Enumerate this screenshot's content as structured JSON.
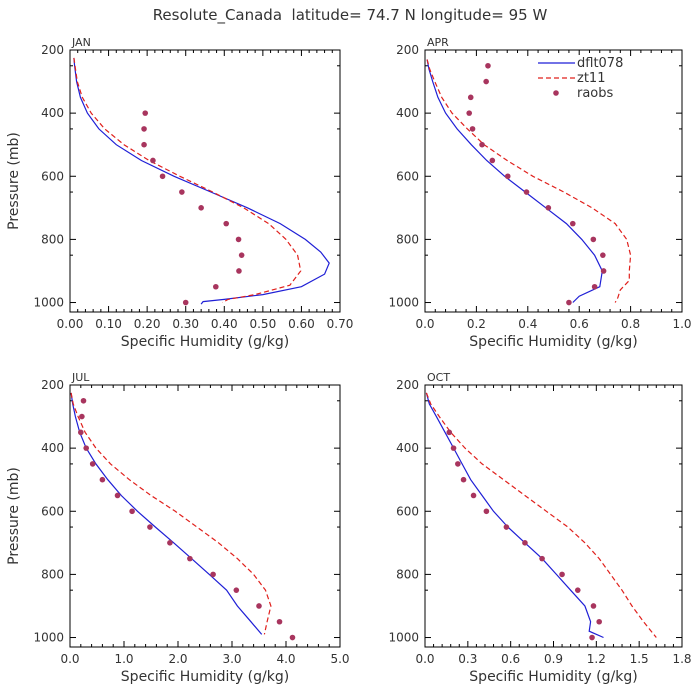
{
  "figure_title": "Resolute_Canada  latitude= 74.7 N longitude= 95 W",
  "colors": {
    "dflt078": "#1f1fd6",
    "zt11": "#e0201c",
    "raobs": "#a8355e",
    "axis": "#000000",
    "text": "#333333"
  },
  "legend": [
    "dflt078",
    "zt11",
    "raobs"
  ],
  "chart_data": [
    {
      "type": "line",
      "panel": "JAN",
      "xlabel": "Specific Humidity (g/kg)",
      "ylabel": "Pressure (mb)",
      "xlim": [
        0.0,
        0.7
      ],
      "xticks": [
        "0.00",
        "0.10",
        "0.20",
        "0.30",
        "0.40",
        "0.50",
        "0.60",
        "0.70"
      ],
      "ylim": [
        200,
        1030
      ],
      "y_inverted": true,
      "yticks": [
        "200",
        "400",
        "600",
        "800",
        "1000"
      ],
      "series": [
        {
          "name": "dflt078",
          "style": "solid",
          "points": [
            [
              0.01,
              225
            ],
            [
              0.012,
              250
            ],
            [
              0.017,
              300
            ],
            [
              0.027,
              350
            ],
            [
              0.045,
              400
            ],
            [
              0.075,
              450
            ],
            [
              0.12,
              500
            ],
            [
              0.185,
              550
            ],
            [
              0.27,
              600
            ],
            [
              0.365,
              650
            ],
            [
              0.46,
              700
            ],
            [
              0.545,
              750
            ],
            [
              0.61,
              800
            ],
            [
              0.65,
              840
            ],
            [
              0.672,
              875
            ],
            [
              0.66,
              910
            ],
            [
              0.6,
              950
            ],
            [
              0.5,
              975
            ],
            [
              0.4,
              990
            ],
            [
              0.345,
              997
            ],
            [
              0.34,
              1005
            ]
          ]
        },
        {
          "name": "zt11",
          "style": "dashed",
          "points": [
            [
              0.01,
              225
            ],
            [
              0.013,
              250
            ],
            [
              0.019,
              300
            ],
            [
              0.032,
              350
            ],
            [
              0.055,
              400
            ],
            [
              0.09,
              450
            ],
            [
              0.14,
              500
            ],
            [
              0.205,
              550
            ],
            [
              0.285,
              600
            ],
            [
              0.37,
              650
            ],
            [
              0.45,
              700
            ],
            [
              0.515,
              750
            ],
            [
              0.56,
              800
            ],
            [
              0.59,
              850
            ],
            [
              0.598,
              900
            ],
            [
              0.57,
              945
            ],
            [
              0.48,
              975
            ],
            [
              0.41,
              990
            ],
            [
              0.395,
              1000
            ]
          ]
        },
        {
          "name": "raobs",
          "style": "points",
          "points": [
            [
              0.195,
              400
            ],
            [
              0.192,
              450
            ],
            [
              0.192,
              500
            ],
            [
              0.215,
              550
            ],
            [
              0.24,
              600
            ],
            [
              0.29,
              650
            ],
            [
              0.34,
              700
            ],
            [
              0.405,
              750
            ],
            [
              0.437,
              800
            ],
            [
              0.445,
              850
            ],
            [
              0.438,
              900
            ],
            [
              0.378,
              950
            ],
            [
              0.3,
              1000
            ]
          ]
        }
      ]
    },
    {
      "type": "line",
      "panel": "APR",
      "xlabel": "Specific Humidity (g/kg)",
      "ylabel": "",
      "xlim": [
        0.0,
        1.0
      ],
      "xticks": [
        "0.0",
        "0.2",
        "0.4",
        "0.6",
        "0.8",
        "1.0"
      ],
      "ylim": [
        200,
        1030
      ],
      "y_inverted": true,
      "yticks": [
        "200",
        "400",
        "600",
        "800",
        "1000"
      ],
      "series": [
        {
          "name": "dflt078",
          "style": "solid",
          "points": [
            [
              0.008,
              230
            ],
            [
              0.015,
              260
            ],
            [
              0.03,
              300
            ],
            [
              0.05,
              350
            ],
            [
              0.08,
              400
            ],
            [
              0.125,
              450
            ],
            [
              0.18,
              500
            ],
            [
              0.24,
              550
            ],
            [
              0.31,
              600
            ],
            [
              0.39,
              650
            ],
            [
              0.47,
              700
            ],
            [
              0.55,
              750
            ],
            [
              0.61,
              800
            ],
            [
              0.66,
              850
            ],
            [
              0.69,
              900
            ],
            [
              0.68,
              950
            ],
            [
              0.6,
              980
            ],
            [
              0.575,
              1000
            ]
          ]
        },
        {
          "name": "zt11",
          "style": "dashed",
          "points": [
            [
              0.008,
              230
            ],
            [
              0.018,
              260
            ],
            [
              0.038,
              300
            ],
            [
              0.065,
              350
            ],
            [
              0.105,
              400
            ],
            [
              0.165,
              450
            ],
            [
              0.23,
              500
            ],
            [
              0.32,
              550
            ],
            [
              0.42,
              600
            ],
            [
              0.54,
              650
            ],
            [
              0.65,
              700
            ],
            [
              0.74,
              750
            ],
            [
              0.785,
              800
            ],
            [
              0.8,
              850
            ],
            [
              0.795,
              900
            ],
            [
              0.795,
              930
            ],
            [
              0.76,
              960
            ],
            [
              0.75,
              985
            ],
            [
              0.74,
              1000
            ]
          ]
        },
        {
          "name": "raobs",
          "style": "points",
          "points": [
            [
              0.245,
              250
            ],
            [
              0.238,
              300
            ],
            [
              0.178,
              350
            ],
            [
              0.172,
              400
            ],
            [
              0.185,
              450
            ],
            [
              0.222,
              500
            ],
            [
              0.262,
              550
            ],
            [
              0.322,
              600
            ],
            [
              0.395,
              650
            ],
            [
              0.48,
              700
            ],
            [
              0.575,
              750
            ],
            [
              0.655,
              800
            ],
            [
              0.692,
              850
            ],
            [
              0.695,
              900
            ],
            [
              0.66,
              950
            ],
            [
              0.56,
              1000
            ]
          ]
        }
      ]
    },
    {
      "type": "line",
      "panel": "JUL",
      "xlabel": "Specific Humidity (g/kg)",
      "ylabel": "Pressure (mb)",
      "xlim": [
        0.0,
        5.0
      ],
      "xticks": [
        "0.0",
        "1.0",
        "2.0",
        "3.0",
        "4.0",
        "5.0"
      ],
      "ylim": [
        200,
        1030
      ],
      "y_inverted": true,
      "yticks": [
        "200",
        "400",
        "600",
        "800",
        "1000"
      ],
      "series": [
        {
          "name": "dflt078",
          "style": "solid",
          "points": [
            [
              0.02,
              225
            ],
            [
              0.05,
              260
            ],
            [
              0.1,
              300
            ],
            [
              0.18,
              350
            ],
            [
              0.3,
              400
            ],
            [
              0.48,
              450
            ],
            [
              0.7,
              500
            ],
            [
              0.95,
              550
            ],
            [
              1.25,
              600
            ],
            [
              1.58,
              650
            ],
            [
              1.92,
              700
            ],
            [
              2.25,
              750
            ],
            [
              2.58,
              800
            ],
            [
              2.9,
              850
            ],
            [
              3.1,
              900
            ],
            [
              3.35,
              950
            ],
            [
              3.55,
              990
            ]
          ]
        },
        {
          "name": "zt11",
          "style": "dashed",
          "points": [
            [
              0.02,
              225
            ],
            [
              0.06,
              260
            ],
            [
              0.15,
              300
            ],
            [
              0.28,
              350
            ],
            [
              0.48,
              400
            ],
            [
              0.75,
              450
            ],
            [
              1.1,
              500
            ],
            [
              1.5,
              550
            ],
            [
              1.95,
              600
            ],
            [
              2.35,
              650
            ],
            [
              2.75,
              700
            ],
            [
              3.1,
              750
            ],
            [
              3.4,
              800
            ],
            [
              3.62,
              850
            ],
            [
              3.72,
              900
            ],
            [
              3.65,
              950
            ],
            [
              3.6,
              990
            ]
          ]
        },
        {
          "name": "raobs",
          "style": "points",
          "points": [
            [
              0.25,
              250
            ],
            [
              0.22,
              300
            ],
            [
              0.2,
              350
            ],
            [
              0.3,
              400
            ],
            [
              0.42,
              450
            ],
            [
              0.6,
              500
            ],
            [
              0.88,
              550
            ],
            [
              1.15,
              600
            ],
            [
              1.48,
              650
            ],
            [
              1.85,
              700
            ],
            [
              2.22,
              750
            ],
            [
              2.65,
              800
            ],
            [
              3.08,
              850
            ],
            [
              3.5,
              900
            ],
            [
              3.88,
              950
            ],
            [
              4.12,
              1000
            ]
          ]
        }
      ]
    },
    {
      "type": "line",
      "panel": "OCT",
      "xlabel": "Specific Humidity (g/kg)",
      "ylabel": "",
      "xlim": [
        0.0,
        1.8
      ],
      "xticks": [
        "0.0",
        "0.3",
        "0.6",
        "0.9",
        "1.2",
        "1.5",
        "1.8"
      ],
      "ylim": [
        200,
        1030
      ],
      "y_inverted": true,
      "yticks": [
        "200",
        "400",
        "600",
        "800",
        "1000"
      ],
      "series": [
        {
          "name": "dflt078",
          "style": "solid",
          "points": [
            [
              0.01,
              225
            ],
            [
              0.03,
              260
            ],
            [
              0.08,
              300
            ],
            [
              0.14,
              350
            ],
            [
              0.2,
              400
            ],
            [
              0.26,
              450
            ],
            [
              0.32,
              500
            ],
            [
              0.4,
              550
            ],
            [
              0.48,
              600
            ],
            [
              0.58,
              650
            ],
            [
              0.7,
              700
            ],
            [
              0.82,
              750
            ],
            [
              0.92,
              800
            ],
            [
              1.02,
              850
            ],
            [
              1.12,
              900
            ],
            [
              1.16,
              950
            ],
            [
              1.15,
              980
            ],
            [
              1.25,
              1000
            ]
          ]
        },
        {
          "name": "zt11",
          "style": "dashed",
          "points": [
            [
              0.01,
              225
            ],
            [
              0.04,
              260
            ],
            [
              0.1,
              300
            ],
            [
              0.18,
              350
            ],
            [
              0.28,
              400
            ],
            [
              0.4,
              450
            ],
            [
              0.55,
              500
            ],
            [
              0.7,
              550
            ],
            [
              0.85,
              600
            ],
            [
              1.0,
              650
            ],
            [
              1.12,
              700
            ],
            [
              1.22,
              750
            ],
            [
              1.3,
              800
            ],
            [
              1.38,
              850
            ],
            [
              1.45,
              900
            ],
            [
              1.53,
              950
            ],
            [
              1.62,
              1000
            ]
          ]
        },
        {
          "name": "raobs",
          "style": "points",
          "points": [
            [
              0.17,
              350
            ],
            [
              0.2,
              400
            ],
            [
              0.23,
              450
            ],
            [
              0.27,
              500
            ],
            [
              0.34,
              550
            ],
            [
              0.43,
              600
            ],
            [
              0.57,
              650
            ],
            [
              0.7,
              700
            ],
            [
              0.82,
              750
            ],
            [
              0.96,
              800
            ],
            [
              1.07,
              850
            ],
            [
              1.18,
              900
            ],
            [
              1.22,
              950
            ],
            [
              1.17,
              1000
            ]
          ]
        }
      ]
    }
  ]
}
